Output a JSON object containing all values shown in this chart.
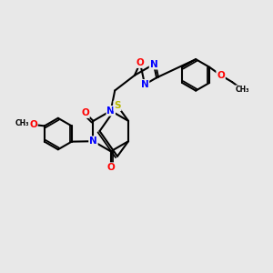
{
  "bg_color": "#e8e8e8",
  "atom_colors": {
    "N": "#0000ff",
    "O": "#ff0000",
    "S": "#b8b800",
    "C": "#000000"
  },
  "bond_color": "#000000",
  "bond_width": 1.5,
  "figsize": [
    3.0,
    3.0
  ],
  "dpi": 100
}
